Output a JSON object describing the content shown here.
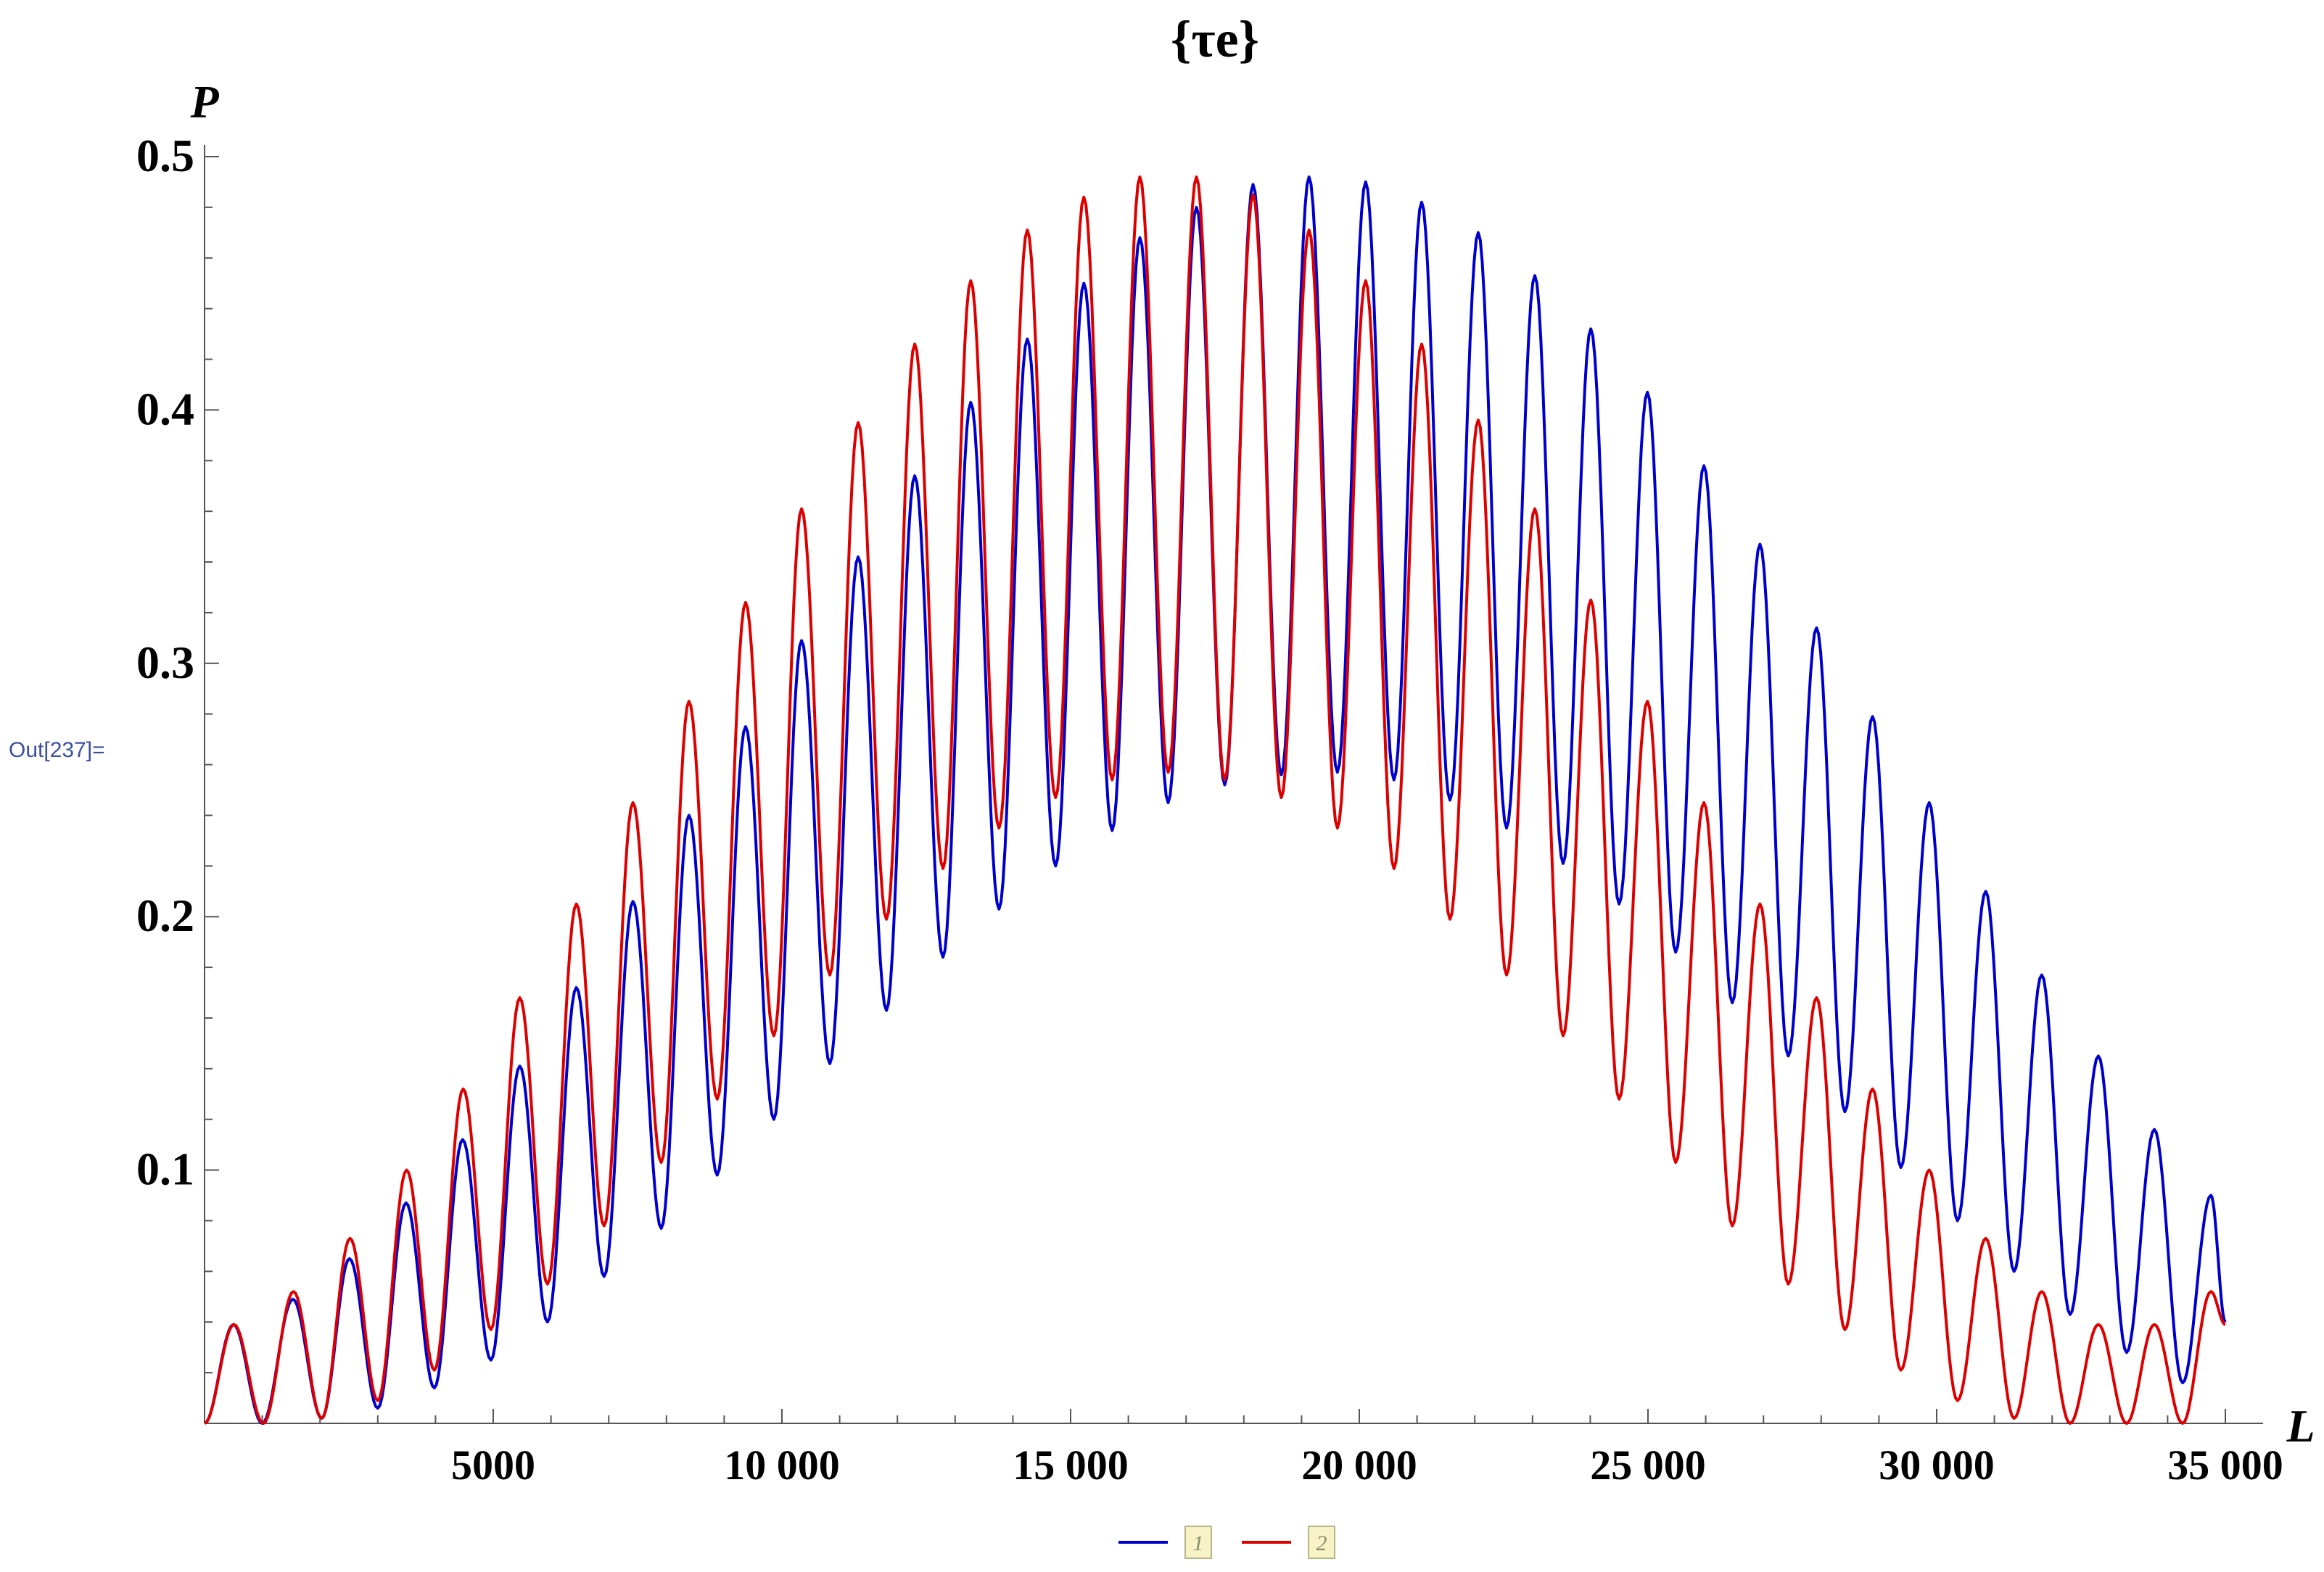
{
  "notebook": {
    "out_label": "Out[237]="
  },
  "chart_data": {
    "type": "line",
    "title": "{τe}",
    "xlabel": "L",
    "ylabel": "P",
    "xlim": [
      0,
      35000
    ],
    "ylim": [
      0,
      0.5
    ],
    "x_ticks": [
      5000,
      10000,
      15000,
      20000,
      25000,
      30000,
      35000
    ],
    "x_tick_labels": [
      "5000",
      "10 000",
      "15 000",
      "20 000",
      "25 000",
      "30 000",
      "35 000"
    ],
    "y_ticks": [
      0.1,
      0.2,
      0.3,
      0.4,
      0.5
    ],
    "y_tick_labels": [
      "0.1",
      "0.2",
      "0.3",
      "0.4",
      "0.5"
    ],
    "grid": false,
    "legend": {
      "placement": "bottom-center"
    },
    "colors": {
      "series1": "#0000cc",
      "series2": "#dd0000",
      "axis": "#555555",
      "legend_box_bg": "#f7f3c6",
      "legend_box_border": "#b8b48a"
    },
    "series": [
      {
        "name": "1",
        "color": "#0000cc",
        "maxima": [
          [
            500,
            0.039
          ],
          [
            1530,
            0.049
          ],
          [
            2510,
            0.065
          ],
          [
            3490,
            0.087
          ],
          [
            4470,
            0.112
          ],
          [
            5460,
            0.141
          ],
          [
            6440,
            0.172
          ],
          [
            7420,
            0.206
          ],
          [
            8390,
            0.24
          ],
          [
            9370,
            0.275
          ],
          [
            10340,
            0.309
          ],
          [
            11320,
            0.342
          ],
          [
            12300,
            0.374
          ],
          [
            13270,
            0.403
          ],
          [
            14250,
            0.428
          ],
          [
            15230,
            0.45
          ],
          [
            16200,
            0.468
          ],
          [
            17180,
            0.48
          ],
          [
            18160,
            0.489
          ],
          [
            19130,
            0.492
          ],
          [
            20110,
            0.49
          ],
          [
            21080,
            0.482
          ],
          [
            22060,
            0.47
          ],
          [
            23040,
            0.453
          ],
          [
            24010,
            0.432
          ],
          [
            24990,
            0.407
          ],
          [
            25970,
            0.378
          ],
          [
            26940,
            0.347
          ],
          [
            27920,
            0.314
          ],
          [
            28890,
            0.279
          ],
          [
            29870,
            0.245
          ],
          [
            30850,
            0.21
          ],
          [
            31820,
            0.177
          ],
          [
            32800,
            0.145
          ],
          [
            33770,
            0.116
          ],
          [
            34750,
            0.09
          ]
        ],
        "minima": [
          [
            1000,
            0.0
          ],
          [
            2030,
            0.002
          ],
          [
            3000,
            0.006
          ],
          [
            3980,
            0.014
          ],
          [
            4960,
            0.025
          ],
          [
            5940,
            0.04
          ],
          [
            6920,
            0.058
          ],
          [
            7910,
            0.077
          ],
          [
            8880,
            0.098
          ],
          [
            9860,
            0.12
          ],
          [
            10830,
            0.142
          ],
          [
            11810,
            0.163
          ],
          [
            12790,
            0.184
          ],
          [
            13760,
            0.203
          ],
          [
            14740,
            0.22
          ],
          [
            15720,
            0.234
          ],
          [
            16690,
            0.245
          ],
          [
            17670,
            0.252
          ],
          [
            18650,
            0.256
          ],
          [
            19620,
            0.257
          ],
          [
            20600,
            0.254
          ],
          [
            21570,
            0.246
          ],
          [
            22550,
            0.235
          ],
          [
            23530,
            0.221
          ],
          [
            24500,
            0.205
          ],
          [
            25480,
            0.186
          ],
          [
            26460,
            0.166
          ],
          [
            27430,
            0.145
          ],
          [
            28410,
            0.123
          ],
          [
            29380,
            0.101
          ],
          [
            30360,
            0.08
          ],
          [
            31340,
            0.06
          ],
          [
            32310,
            0.043
          ],
          [
            33290,
            0.028
          ],
          [
            34260,
            0.016
          ]
        ],
        "end": [
          35000,
          0.04
        ]
      },
      {
        "name": "2",
        "color": "#dd0000",
        "maxima": [
          [
            510,
            0.039
          ],
          [
            1540,
            0.052
          ],
          [
            2520,
            0.073
          ],
          [
            3500,
            0.1
          ],
          [
            4480,
            0.132
          ],
          [
            5460,
            0.168
          ],
          [
            6440,
            0.205
          ],
          [
            7420,
            0.245
          ],
          [
            8390,
            0.285
          ],
          [
            9370,
            0.324
          ],
          [
            10340,
            0.361
          ],
          [
            11320,
            0.395
          ],
          [
            12300,
            0.426
          ],
          [
            13270,
            0.451
          ],
          [
            14250,
            0.471
          ],
          [
            15230,
            0.484
          ],
          [
            16200,
            0.492
          ],
          [
            17180,
            0.492
          ],
          [
            18160,
            0.485
          ],
          [
            19130,
            0.471
          ],
          [
            20110,
            0.451
          ],
          [
            21080,
            0.426
          ],
          [
            22060,
            0.396
          ],
          [
            23040,
            0.361
          ],
          [
            24010,
            0.325
          ],
          [
            24990,
            0.285
          ],
          [
            25970,
            0.245
          ],
          [
            26940,
            0.205
          ],
          [
            27920,
            0.168
          ],
          [
            28890,
            0.132
          ],
          [
            29870,
            0.1
          ],
          [
            30850,
            0.073
          ],
          [
            31820,
            0.052
          ],
          [
            32800,
            0.039
          ],
          [
            33770,
            0.039
          ],
          [
            34750,
            0.052
          ]
        ],
        "minima": [
          [
            1020,
            0.0
          ],
          [
            2030,
            0.002
          ],
          [
            3000,
            0.009
          ],
          [
            3980,
            0.021
          ],
          [
            4960,
            0.037
          ],
          [
            5940,
            0.055
          ],
          [
            6920,
            0.078
          ],
          [
            7910,
            0.103
          ],
          [
            8880,
            0.128
          ],
          [
            9860,
            0.153
          ],
          [
            10830,
            0.177
          ],
          [
            11810,
            0.199
          ],
          [
            12790,
            0.219
          ],
          [
            13760,
            0.235
          ],
          [
            14740,
            0.247
          ],
          [
            15720,
            0.254
          ],
          [
            16690,
            0.257
          ],
          [
            17670,
            0.254
          ],
          [
            18650,
            0.247
          ],
          [
            19620,
            0.235
          ],
          [
            20600,
            0.219
          ],
          [
            21570,
            0.199
          ],
          [
            22550,
            0.177
          ],
          [
            23530,
            0.153
          ],
          [
            24500,
            0.128
          ],
          [
            25480,
            0.103
          ],
          [
            26460,
            0.078
          ],
          [
            27430,
            0.055
          ],
          [
            28410,
            0.037
          ],
          [
            29380,
            0.021
          ],
          [
            30360,
            0.009
          ],
          [
            31340,
            0.002
          ],
          [
            32310,
            0.0
          ],
          [
            33290,
            0.0
          ],
          [
            34260,
            0.0
          ]
        ],
        "end": [
          35000,
          0.039
        ]
      }
    ]
  }
}
